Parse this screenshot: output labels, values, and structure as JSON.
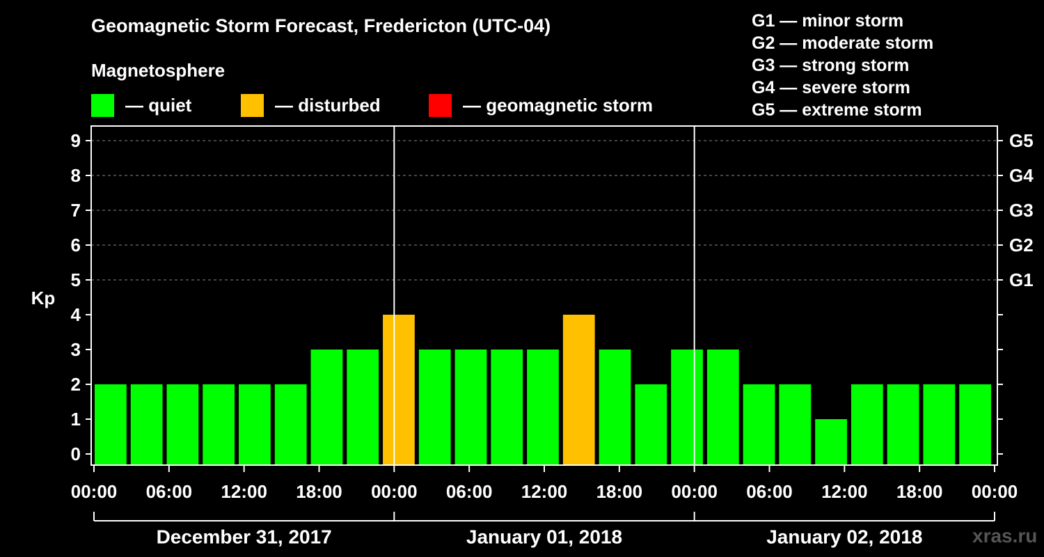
{
  "header": {
    "title": "Geomagnetic Storm Forecast, Fredericton (UTC-04)",
    "magnetosphere_label": "Magnetosphere"
  },
  "legend": {
    "items": [
      {
        "label": "— quiet",
        "color": "#00ff00"
      },
      {
        "label": "— disturbed",
        "color": "#ffc000"
      },
      {
        "label": "— geomagnetic storm",
        "color": "#ff0000"
      }
    ],
    "storm_levels": [
      "G1 — minor storm",
      "G2 — moderate storm",
      "G3 — strong storm",
      "G4 — severe storm",
      "G5 — extreme storm"
    ]
  },
  "watermark": "xras.ru",
  "chart_data": {
    "type": "bar",
    "ylabel": "Kp",
    "ylim": [
      0,
      9
    ],
    "y_ticks": [
      "0",
      "1",
      "2",
      "3",
      "4",
      "5",
      "6",
      "7",
      "8",
      "9"
    ],
    "right_ticks": [
      {
        "value": 5,
        "label": "G1"
      },
      {
        "value": 6,
        "label": "G2"
      },
      {
        "value": 7,
        "label": "G3"
      },
      {
        "value": 8,
        "label": "G4"
      },
      {
        "value": 9,
        "label": "G5"
      }
    ],
    "x_tick_labels": [
      "00:00",
      "06:00",
      "12:00",
      "18:00",
      "00:00",
      "06:00",
      "12:00",
      "18:00",
      "00:00",
      "06:00",
      "12:00",
      "18:00",
      "00:00"
    ],
    "day_labels": [
      "December 31, 2017",
      "January 01, 2018",
      "January 02, 2018"
    ],
    "grid": true,
    "bars": [
      {
        "kp": 2,
        "status": "quiet"
      },
      {
        "kp": 2,
        "status": "quiet"
      },
      {
        "kp": 2,
        "status": "quiet"
      },
      {
        "kp": 2,
        "status": "quiet"
      },
      {
        "kp": 2,
        "status": "quiet"
      },
      {
        "kp": 2,
        "status": "quiet"
      },
      {
        "kp": 3,
        "status": "quiet"
      },
      {
        "kp": 3,
        "status": "quiet"
      },
      {
        "kp": 4,
        "status": "disturbed"
      },
      {
        "kp": 3,
        "status": "quiet"
      },
      {
        "kp": 3,
        "status": "quiet"
      },
      {
        "kp": 3,
        "status": "quiet"
      },
      {
        "kp": 3,
        "status": "quiet"
      },
      {
        "kp": 4,
        "status": "disturbed"
      },
      {
        "kp": 3,
        "status": "quiet"
      },
      {
        "kp": 2,
        "status": "quiet"
      },
      {
        "kp": 3,
        "status": "quiet"
      },
      {
        "kp": 3,
        "status": "quiet"
      },
      {
        "kp": 2,
        "status": "quiet"
      },
      {
        "kp": 2,
        "status": "quiet"
      },
      {
        "kp": 1,
        "status": "quiet"
      },
      {
        "kp": 2,
        "status": "quiet"
      },
      {
        "kp": 2,
        "status": "quiet"
      },
      {
        "kp": 2,
        "status": "quiet"
      },
      {
        "kp": 2,
        "status": "quiet"
      }
    ],
    "colors": {
      "quiet": "#00ff00",
      "disturbed": "#ffc000",
      "storm": "#ff0000"
    }
  }
}
